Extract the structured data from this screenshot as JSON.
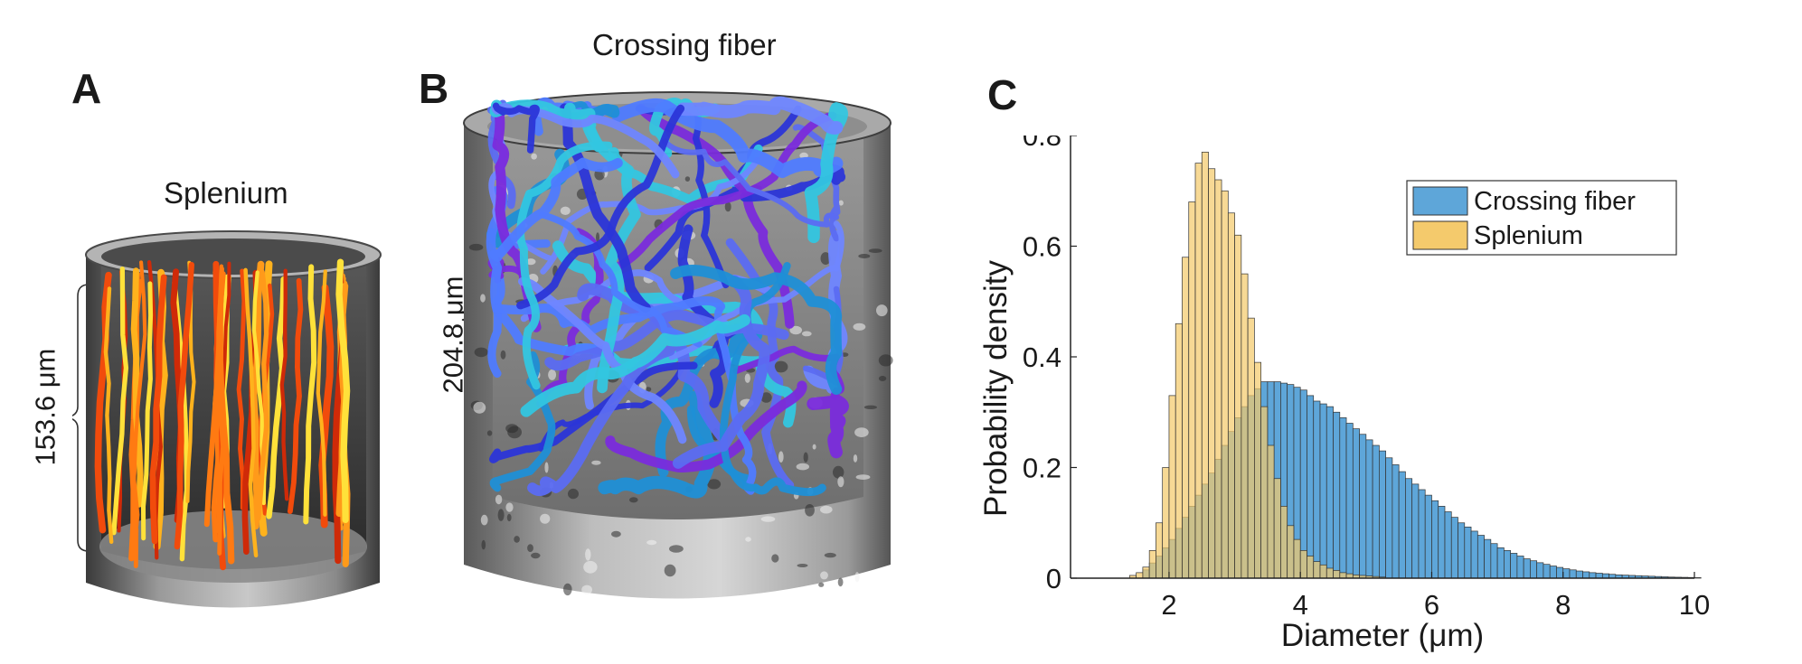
{
  "figure": {
    "panel_a": {
      "letter": "A",
      "title": "Splenium",
      "scale_label": "153.6 μm",
      "colors": [
        "#ffe13a",
        "#ffb21d",
        "#ff7a12",
        "#f14b0c",
        "#cf2a08",
        "#ff9a1a"
      ]
    },
    "panel_b": {
      "letter": "B",
      "title": "Crossing fiber",
      "scale_label": "204.8 μm",
      "colors": [
        "#6f86ff",
        "#5b6cf2",
        "#2b35d8",
        "#33c6e0",
        "#7a2bdc",
        "#4f7bff",
        "#1f8fd6"
      ]
    },
    "panel_c": {
      "letter": "C"
    }
  },
  "chart_data": {
    "type": "histogram",
    "xlabel": "Diameter (μm)",
    "ylabel": "Probability density",
    "xlim": [
      0.5,
      10
    ],
    "ylim": [
      0,
      0.8
    ],
    "xticks": [
      2,
      4,
      6,
      8,
      10
    ],
    "yticks": [
      0,
      0.2,
      0.4,
      0.6,
      0.8
    ],
    "bin_width": 0.1,
    "grid": false,
    "legend_position": "top-right",
    "series": [
      {
        "name": "Crossing fiber",
        "color": "#5ea6d9",
        "bins": [
          [
            1.6,
            0.015
          ],
          [
            1.8,
            0.04
          ],
          [
            2.0,
            0.07
          ],
          [
            2.2,
            0.11
          ],
          [
            2.4,
            0.15
          ],
          [
            2.6,
            0.19
          ],
          [
            2.8,
            0.24
          ],
          [
            3.0,
            0.29
          ],
          [
            3.2,
            0.33
          ],
          [
            3.4,
            0.355
          ],
          [
            3.6,
            0.355
          ],
          [
            3.8,
            0.35
          ],
          [
            4.0,
            0.34
          ],
          [
            4.2,
            0.32
          ],
          [
            4.4,
            0.31
          ],
          [
            4.6,
            0.29
          ],
          [
            4.8,
            0.27
          ],
          [
            5.0,
            0.25
          ],
          [
            5.2,
            0.23
          ],
          [
            5.4,
            0.205
          ],
          [
            5.6,
            0.18
          ],
          [
            5.8,
            0.16
          ],
          [
            6.0,
            0.14
          ],
          [
            6.2,
            0.12
          ],
          [
            6.4,
            0.1
          ],
          [
            6.6,
            0.085
          ],
          [
            6.8,
            0.07
          ],
          [
            7.0,
            0.055
          ],
          [
            7.2,
            0.045
          ],
          [
            7.4,
            0.035
          ],
          [
            7.6,
            0.028
          ],
          [
            7.8,
            0.022
          ],
          [
            8.0,
            0.017
          ],
          [
            8.2,
            0.013
          ],
          [
            8.4,
            0.01
          ],
          [
            8.6,
            0.008
          ],
          [
            8.8,
            0.006
          ],
          [
            9.0,
            0.005
          ],
          [
            9.2,
            0.004
          ],
          [
            9.4,
            0.003
          ],
          [
            9.6,
            0.002
          ],
          [
            9.8,
            0.0015
          ],
          [
            10.0,
            0.001
          ]
        ]
      },
      {
        "name": "Splenium",
        "color": "#f4ca6c",
        "bins": [
          [
            1.4,
            0.005
          ],
          [
            1.5,
            0.01
          ],
          [
            1.6,
            0.02
          ],
          [
            1.7,
            0.05
          ],
          [
            1.8,
            0.1
          ],
          [
            1.9,
            0.2
          ],
          [
            2.0,
            0.33
          ],
          [
            2.1,
            0.46
          ],
          [
            2.2,
            0.58
          ],
          [
            2.3,
            0.68
          ],
          [
            2.4,
            0.75
          ],
          [
            2.5,
            0.77
          ],
          [
            2.6,
            0.74
          ],
          [
            2.7,
            0.72
          ],
          [
            2.8,
            0.7
          ],
          [
            2.9,
            0.66
          ],
          [
            3.0,
            0.62
          ],
          [
            3.1,
            0.55
          ],
          [
            3.2,
            0.47
          ],
          [
            3.3,
            0.39
          ],
          [
            3.4,
            0.31
          ],
          [
            3.5,
            0.24
          ],
          [
            3.6,
            0.18
          ],
          [
            3.7,
            0.13
          ],
          [
            3.8,
            0.095
          ],
          [
            3.9,
            0.07
          ],
          [
            4.0,
            0.05
          ],
          [
            4.2,
            0.03
          ],
          [
            4.4,
            0.018
          ],
          [
            4.6,
            0.01
          ],
          [
            4.8,
            0.006
          ],
          [
            5.0,
            0.004
          ],
          [
            5.2,
            0.002
          ]
        ]
      }
    ]
  }
}
